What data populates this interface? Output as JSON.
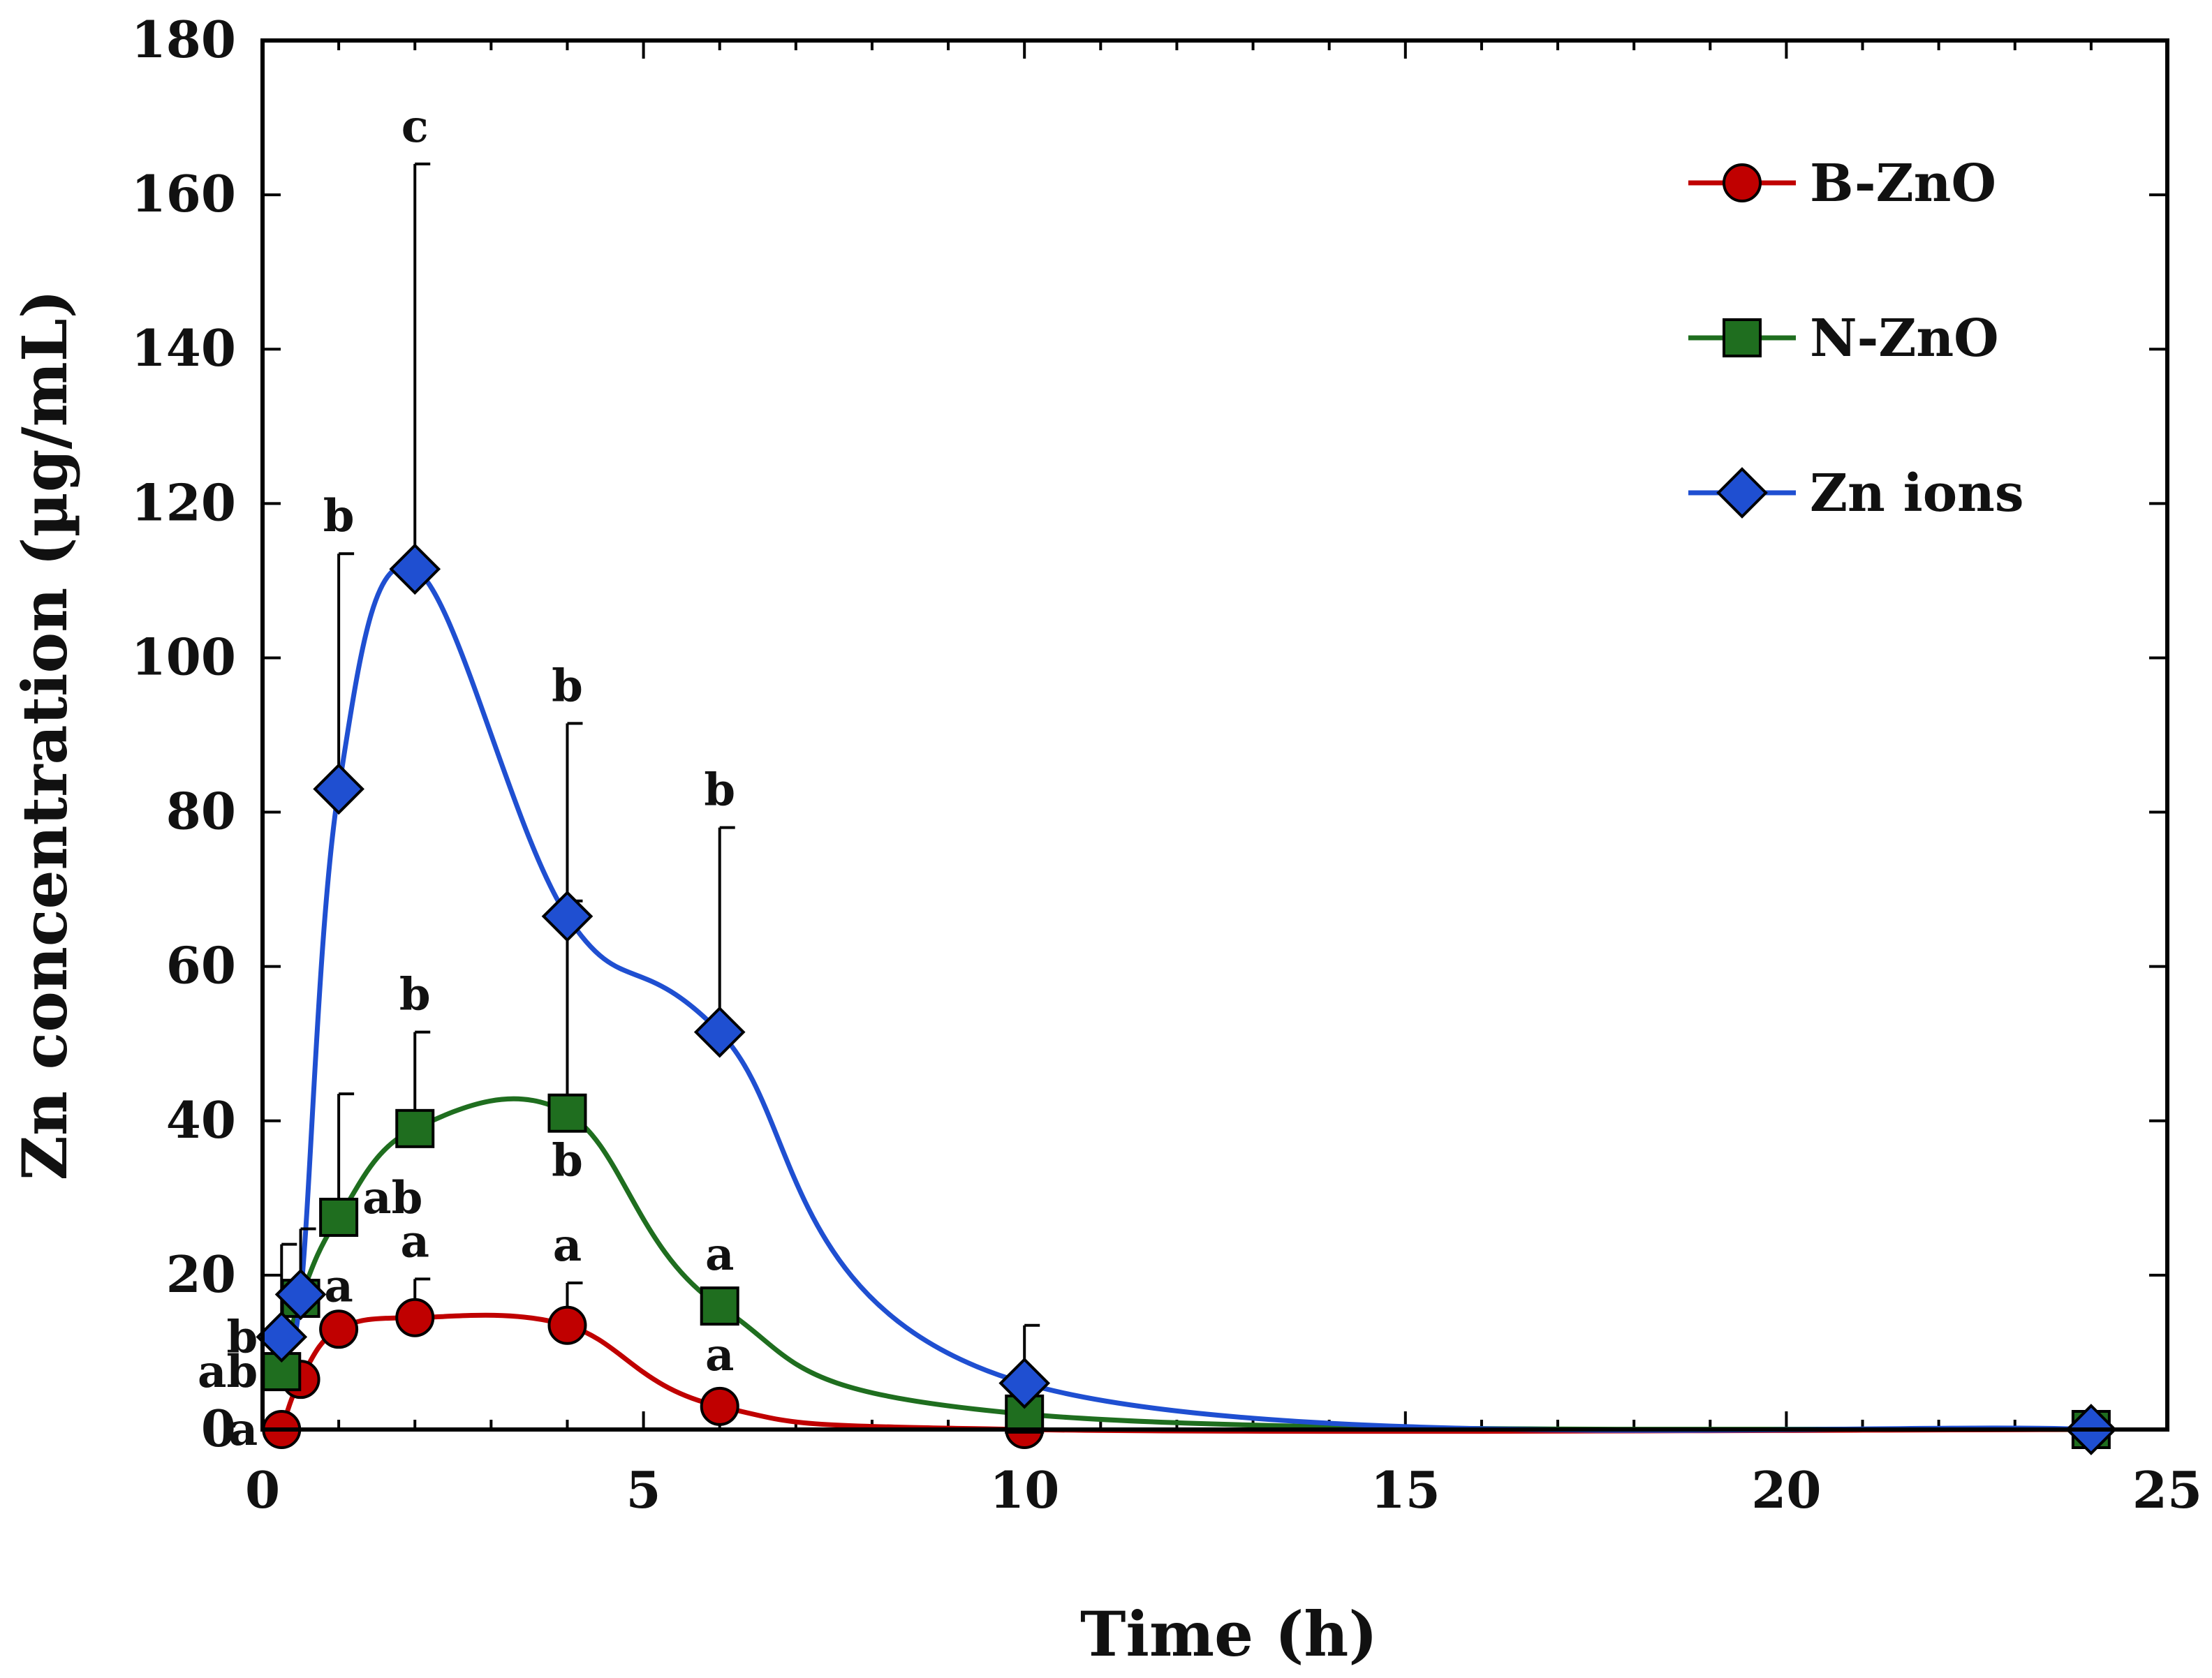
{
  "chart_data": {
    "type": "line",
    "title": "",
    "xlabel": "Time (h)",
    "ylabel": "Zn concentration (µg/mL)",
    "xlim": [
      0,
      25
    ],
    "ylim": [
      0,
      180
    ],
    "xticks": [
      0,
      5,
      10,
      15,
      20,
      25
    ],
    "yticks": [
      0,
      20,
      40,
      60,
      80,
      100,
      120,
      140,
      160,
      180
    ],
    "grid": false,
    "legend_position": "top-right",
    "series": [
      {
        "name": "B-ZnO",
        "color": "#c00000",
        "marker": "circle",
        "x": [
          0.25,
          0.5,
          1,
          2,
          4,
          6,
          10,
          24
        ],
        "y": [
          0,
          6.5,
          13,
          14.5,
          13.5,
          3,
          0,
          0
        ],
        "error_upper": [
          null,
          null,
          null,
          19.5,
          19,
          null,
          null,
          null
        ],
        "labels": [
          "a",
          "",
          "a",
          "a",
          "a",
          "a",
          "",
          ""
        ]
      },
      {
        "name": "N-ZnO",
        "color": "#1f6e1f",
        "marker": "square",
        "x": [
          0.25,
          0.5,
          1,
          2,
          4,
          6,
          10,
          24
        ],
        "y": [
          7.5,
          17,
          27.5,
          39,
          41,
          16,
          2,
          0
        ],
        "error_upper": [
          null,
          null,
          43.5,
          51.5,
          68.5,
          null,
          null,
          null
        ],
        "labels": [
          "ab",
          "",
          "ab",
          "b",
          "b",
          "a",
          "",
          ""
        ]
      },
      {
        "name": "Zn ions",
        "color": "#1f4fd1",
        "marker": "diamond",
        "x": [
          0.25,
          0.5,
          1,
          2,
          4,
          6,
          10,
          24
        ],
        "y": [
          12,
          17.5,
          83,
          111.5,
          66.5,
          51.5,
          6,
          0
        ],
        "error_upper": [
          24,
          26,
          113.5,
          164,
          91.5,
          78,
          13.5,
          null
        ],
        "labels": [
          "b",
          "",
          "b",
          "c",
          "b",
          "b",
          "",
          ""
        ]
      }
    ]
  }
}
